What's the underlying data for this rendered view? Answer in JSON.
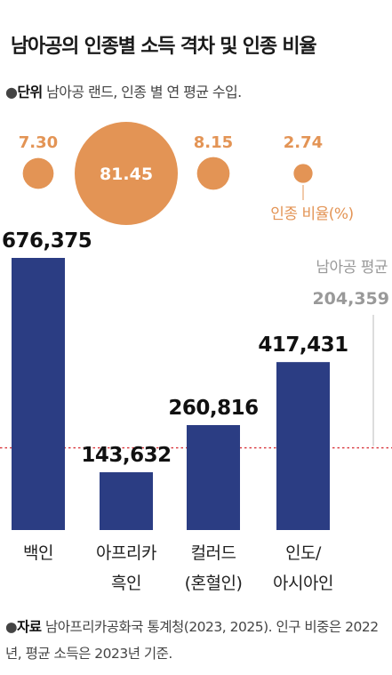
{
  "title": "남아공의 인종별 소득 격차 및 인종 비율",
  "unit": {
    "bullet": "●",
    "label": "단위",
    "text": " 남아공 랜드, 인종 별 연 평균 수입."
  },
  "source": {
    "bullet": "●",
    "label": "자료",
    "text": " 남아프리카공화국 통계청(2023, 2025). 인구 비중은 2022년, 평균 소득은 2023년 기준."
  },
  "chart_data": {
    "type": "bar",
    "categories": [
      {
        "lines": [
          "백인"
        ]
      },
      {
        "lines": [
          "아프리카",
          "흑인"
        ]
      },
      {
        "lines": [
          "컬러드",
          "(혼혈인)"
        ]
      },
      {
        "lines": [
          "인도/",
          "아시아인"
        ]
      }
    ],
    "values": [
      676375,
      143632,
      260816,
      417431
    ],
    "value_labels": [
      "676,375",
      "143,632",
      "260,816",
      "417,431"
    ],
    "population_share": [
      7.3,
      81.45,
      8.15,
      2.74
    ],
    "population_labels": [
      "7.30",
      "81.45",
      "8.15",
      "2.74"
    ],
    "population_legend": "인종 비율(%)",
    "average": {
      "label": "남아공 평균",
      "value": 204359,
      "value_label": "204,359"
    },
    "ylim": [
      0,
      676375
    ],
    "colors": {
      "bar": "#2b3d83",
      "bubble": "#e39455",
      "average_line": "#d8343a",
      "average_text": "#999999"
    }
  }
}
